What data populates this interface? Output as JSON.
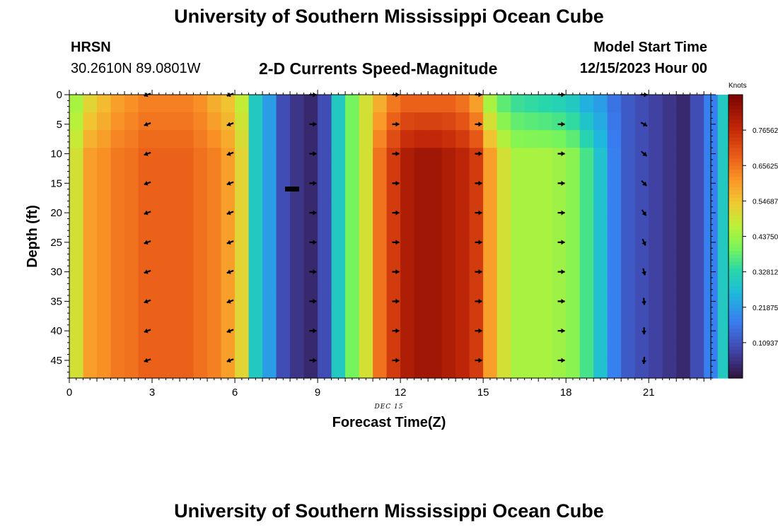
{
  "page": {
    "title": "University of Southern Mississippi Ocean Cube",
    "footer_title": "University of Southern Mississippi Ocean Cube",
    "station": "HRSN",
    "coords": "30.2610N  89.0801W",
    "plot_title": "2-D Currents Speed-Magnitude",
    "start_label": "Model Start Time",
    "start_value": "12/15/2023 Hour 00"
  },
  "chart_data": {
    "type": "heatmap",
    "title": "2-D Currents Speed-Magnitude",
    "xlabel": "Forecast Time(Z)",
    "ylabel": "Depth (ft)",
    "date_label": "DEC 15",
    "xlim": [
      0,
      23.25
    ],
    "ylim": [
      0,
      48
    ],
    "x_ticks": [
      0,
      3,
      6,
      9,
      12,
      15,
      18,
      21
    ],
    "y_ticks": [
      0,
      5,
      10,
      15,
      20,
      25,
      30,
      35,
      40,
      45
    ],
    "colorbar": {
      "label": "Knots",
      "min": 0.0,
      "max": 0.875,
      "tick_labels": [
        "0.10937",
        "0.21875",
        "0.32812",
        "0.43750",
        "0.54687",
        "0.65625",
        "0.76562"
      ],
      "tick_values": [
        0.10937,
        0.21875,
        0.32812,
        0.4375,
        0.54687,
        0.65625,
        0.76562
      ]
    },
    "column_width_hours": 0.5,
    "surface_speed_knots": [
      0.45,
      0.52,
      0.56,
      0.6,
      0.62,
      0.64,
      0.64,
      0.64,
      0.64,
      0.62,
      0.58,
      0.55,
      0.48,
      0.3,
      0.22,
      0.1,
      0.06,
      0.04,
      0.1,
      0.3,
      0.4,
      0.5,
      0.58,
      0.65,
      0.68,
      0.68,
      0.68,
      0.68,
      0.66,
      0.6,
      0.45,
      0.38,
      0.35,
      0.34,
      0.33,
      0.32,
      0.3,
      0.25,
      0.22,
      0.16,
      0.12,
      0.1,
      0.08,
      0.06,
      0.04,
      0.1,
      0.18,
      0.3
    ],
    "bottom_speed_knots": [
      0.5,
      0.6,
      0.62,
      0.65,
      0.66,
      0.68,
      0.68,
      0.68,
      0.68,
      0.66,
      0.64,
      0.6,
      0.52,
      0.3,
      0.22,
      0.1,
      0.06,
      0.04,
      0.1,
      0.3,
      0.4,
      0.5,
      0.66,
      0.74,
      0.8,
      0.82,
      0.82,
      0.8,
      0.78,
      0.74,
      0.6,
      0.5,
      0.45,
      0.45,
      0.45,
      0.44,
      0.42,
      0.36,
      0.28,
      0.18,
      0.12,
      0.1,
      0.08,
      0.06,
      0.04,
      0.1,
      0.18,
      0.3
    ],
    "arrows": {
      "times": [
        2.83,
        5.83,
        8.83,
        11.83,
        14.83,
        17.83,
        20.83
      ],
      "depths": [
        0,
        5,
        10,
        15,
        20,
        25,
        30,
        35,
        40,
        45
      ],
      "direction_deg": [
        [
          200,
          200,
          0,
          0,
          0,
          0,
          0
        ],
        [
          200,
          200,
          0,
          0,
          0,
          0,
          330
        ],
        [
          200,
          200,
          0,
          0,
          0,
          0,
          320
        ],
        [
          200,
          200,
          0,
          0,
          0,
          0,
          315
        ],
        [
          200,
          200,
          0,
          0,
          0,
          0,
          305
        ],
        [
          200,
          200,
          0,
          0,
          0,
          0,
          295
        ],
        [
          200,
          200,
          0,
          0,
          0,
          0,
          285
        ],
        [
          200,
          200,
          0,
          0,
          0,
          0,
          275
        ],
        [
          200,
          200,
          0,
          0,
          0,
          0,
          270
        ],
        [
          200,
          200,
          0,
          0,
          0,
          0,
          265
        ]
      ]
    }
  }
}
